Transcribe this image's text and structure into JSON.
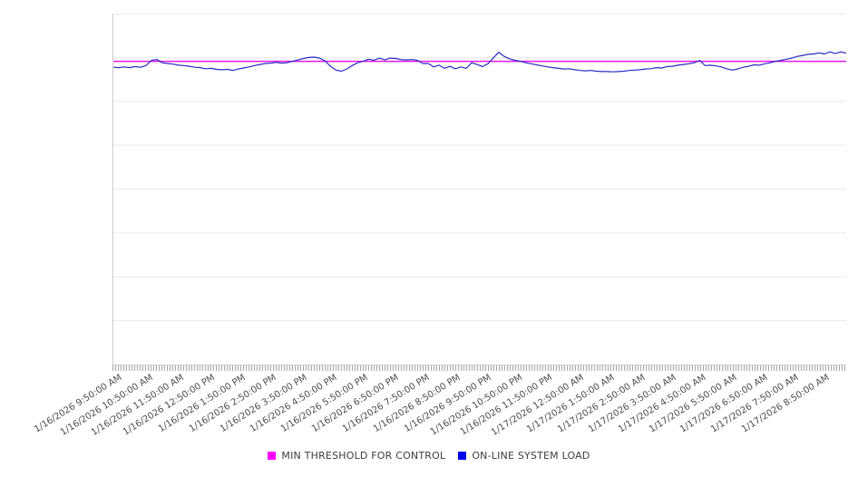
{
  "legend": [
    {
      "label": "MIN THRESHOLD FOR CONTROL",
      "color": "#ff00ff"
    },
    {
      "label": "ON-LINE SYSTEM LOAD",
      "color": "#0000ee"
    }
  ],
  "chart_data": {
    "type": "line",
    "title": "",
    "xlabel": "",
    "ylabel": "",
    "ylim": [
      0,
      100
    ],
    "y_axis_labels_visible": false,
    "grid": "horizontal",
    "grid_divisions": 8,
    "legend_position": "bottom",
    "x_tick_labels": [
      "1/16/2026 9:50:00 AM",
      "1/16/2026 10:50:00 AM",
      "1/16/2026 11:50:00 AM",
      "1/16/2026 12:50:00 PM",
      "1/16/2026 1:50:00 PM",
      "1/16/2026 2:50:00 PM",
      "1/16/2026 3:50:00 PM",
      "1/16/2026 4:50:00 PM",
      "1/16/2026 5:50:00 PM",
      "1/16/2026 6:50:00 PM",
      "1/16/2026 7:50:00 PM",
      "1/16/2026 8:50:00 PM",
      "1/16/2026 9:50:00 PM",
      "1/16/2026 10:50:00 PM",
      "1/16/2026 11:50:00 PM",
      "1/17/2026 12:50:00 AM",
      "1/17/2026 1:50:00 AM",
      "1/17/2026 2:50:00 AM",
      "1/17/2026 3:50:00 AM",
      "1/17/2026 4:50:00 AM",
      "1/17/2026 5:50:00 AM",
      "1/17/2026 6:50:00 AM",
      "1/17/2026 7:50:00 AM",
      "1/17/2026 8:50:00 AM"
    ],
    "series": [
      {
        "name": "MIN THRESHOLD FOR CONTROL",
        "style": "constant-line",
        "color": "#e619e6",
        "value": 86.4
      },
      {
        "name": "ON-LINE SYSTEM LOAD",
        "style": "line",
        "color": "#2a2ac4",
        "values": [
          84.7,
          84.6,
          84.8,
          84.6,
          84.9,
          84.7,
          85.2,
          86.7,
          86.9,
          86.0,
          85.8,
          85.6,
          85.3,
          85.2,
          85.0,
          84.7,
          84.6,
          84.3,
          84.4,
          84.1,
          84.0,
          84.1,
          83.8,
          84.2,
          84.5,
          84.8,
          85.2,
          85.5,
          85.8,
          85.9,
          86.1,
          85.9,
          86.0,
          86.4,
          86.8,
          87.2,
          87.5,
          87.6,
          87.3,
          86.5,
          85.0,
          83.9,
          83.6,
          84.2,
          85.2,
          86.0,
          86.4,
          87.0,
          86.7,
          87.3,
          86.8,
          87.3,
          87.2,
          86.9,
          86.8,
          86.9,
          86.7,
          85.8,
          85.8,
          84.8,
          85.3,
          84.4,
          85.0,
          84.3,
          84.8,
          84.4,
          86.0,
          85.5,
          84.9,
          85.7,
          87.4,
          89.0,
          87.8,
          87.1,
          86.7,
          86.4,
          86.0,
          85.7,
          85.4,
          85.1,
          84.8,
          84.6,
          84.4,
          84.2,
          84.3,
          84.0,
          83.8,
          83.7,
          83.8,
          83.6,
          83.5,
          83.5,
          83.4,
          83.5,
          83.6,
          83.8,
          83.9,
          84.0,
          84.2,
          84.3,
          84.6,
          84.5,
          84.9,
          85.0,
          85.3,
          85.5,
          85.7,
          86.0,
          86.7,
          85.2,
          85.3,
          85.1,
          84.8,
          84.3,
          83.9,
          84.2,
          84.7,
          85.0,
          85.4,
          85.3,
          85.7,
          86.0,
          86.4,
          86.7,
          87.0,
          87.3,
          87.8,
          88.1,
          88.4,
          88.5,
          88.8,
          88.5,
          89.1,
          88.6,
          89.1,
          88.7
        ]
      }
    ]
  }
}
